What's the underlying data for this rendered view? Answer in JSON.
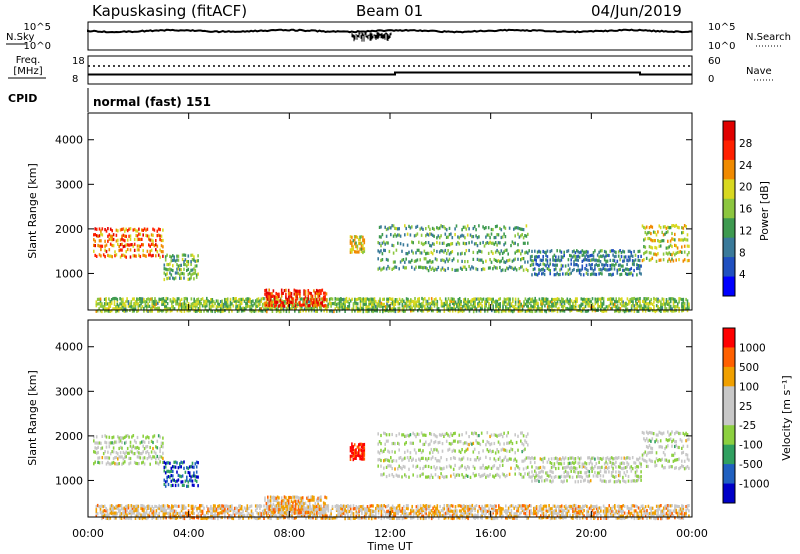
{
  "header": {
    "station": "Kapuskasing (fitACF)",
    "beam": "Beam 01",
    "date": "04/Jun/2019"
  },
  "strip": {
    "nsky_label": "N.Sky",
    "nsearch_label": "N.Search",
    "nsky_ticks": [
      "10^5",
      "10^0"
    ],
    "nsearch_ticks": [
      "10^5",
      "10^0"
    ],
    "freq_label_1": "Freq.",
    "freq_label_2": "[MHz]",
    "freq_ticks": [
      "18",
      "8"
    ],
    "nave_label": "Nave",
    "nave_ticks": [
      "60",
      "0"
    ],
    "cpid_label": "CPID",
    "cpid_value": "normal (fast) 151"
  },
  "chart_data": [
    {
      "type": "heatmap",
      "name": "power-panel",
      "ylabel": "Slant Range [km]",
      "xlabel": "Time UT",
      "ylim": [
        180,
        4600
      ],
      "xlim": [
        0,
        24
      ],
      "yticks": [
        "4000",
        "3000",
        "2000",
        "1000"
      ],
      "xticks": [
        "00:00",
        "04:00",
        "08:00",
        "12:00",
        "16:00",
        "20:00",
        "00:00"
      ],
      "colorbar": {
        "label": "Power [dB]",
        "ticks": [
          "28",
          "24",
          "20",
          "16",
          "12",
          "8",
          "4"
        ],
        "colors": [
          "#0000ff",
          "#2050c0",
          "#3a7a9a",
          "#3e9a50",
          "#8cc63f",
          "#d8d820",
          "#f08a00",
          "#ff2000",
          "#e00000"
        ]
      },
      "echo_bands": [
        {
          "t0": 0.2,
          "t1": 3.0,
          "r0": 1400,
          "r1": 2100,
          "level": 0.75
        },
        {
          "t0": 3.0,
          "t1": 4.4,
          "r0": 900,
          "r1": 1500,
          "level": 0.45
        },
        {
          "t0": 10.4,
          "t1": 11.0,
          "r0": 1500,
          "r1": 1900,
          "level": 0.6
        },
        {
          "t0": 11.5,
          "t1": 17.5,
          "r0": 1100,
          "r1": 2200,
          "level": 0.4
        },
        {
          "t0": 17.5,
          "t1": 22.0,
          "r0": 1000,
          "r1": 1600,
          "level": 0.3
        },
        {
          "t0": 22.0,
          "t1": 23.9,
          "r0": 1300,
          "r1": 2200,
          "level": 0.55
        },
        {
          "t0": 0.3,
          "t1": 23.9,
          "r0": 180,
          "r1": 500,
          "level": 0.5
        },
        {
          "t0": 7.0,
          "t1": 9.5,
          "r0": 300,
          "r1": 700,
          "level": 0.85
        }
      ]
    },
    {
      "type": "heatmap",
      "name": "velocity-panel",
      "ylabel": "Slant Range [km]",
      "xlabel": "Time UT",
      "ylim": [
        180,
        4600
      ],
      "xlim": [
        0,
        24
      ],
      "yticks": [
        "4000",
        "3000",
        "2000",
        "1000"
      ],
      "xticks": [
        "00:00",
        "04:00",
        "08:00",
        "12:00",
        "16:00",
        "20:00",
        "00:00"
      ],
      "colorbar": {
        "label": "Velocity [m s⁻¹]",
        "ticks": [
          "1000",
          "500",
          "100",
          "25",
          "-25",
          "-100",
          "-500",
          "-1000"
        ],
        "colors": [
          "#0000c8",
          "#2060c0",
          "#30a060",
          "#8cd040",
          "#c8c8c8",
          "#c8c8c8",
          "#f0a000",
          "#ff6000",
          "#ff0000"
        ]
      },
      "echo_bands": [
        {
          "t0": 0.2,
          "t1": 3.0,
          "r0": 1400,
          "r1": 2100,
          "level": 0.5
        },
        {
          "t0": 3.0,
          "t1": 4.4,
          "r0": 900,
          "r1": 1500,
          "level": 0.15
        },
        {
          "t0": 10.4,
          "t1": 11.0,
          "r0": 1500,
          "r1": 1900,
          "level": 0.95
        },
        {
          "t0": 11.5,
          "t1": 17.5,
          "r0": 1100,
          "r1": 2200,
          "level": 0.5
        },
        {
          "t0": 17.5,
          "t1": 22.0,
          "r0": 1000,
          "r1": 1600,
          "level": 0.5
        },
        {
          "t0": 22.0,
          "t1": 23.9,
          "r0": 1300,
          "r1": 2200,
          "level": 0.5
        },
        {
          "t0": 0.3,
          "t1": 23.9,
          "r0": 180,
          "r1": 500,
          "level": 0.65
        },
        {
          "t0": 7.0,
          "t1": 9.5,
          "r0": 300,
          "r1": 700,
          "level": 0.7
        }
      ]
    }
  ]
}
